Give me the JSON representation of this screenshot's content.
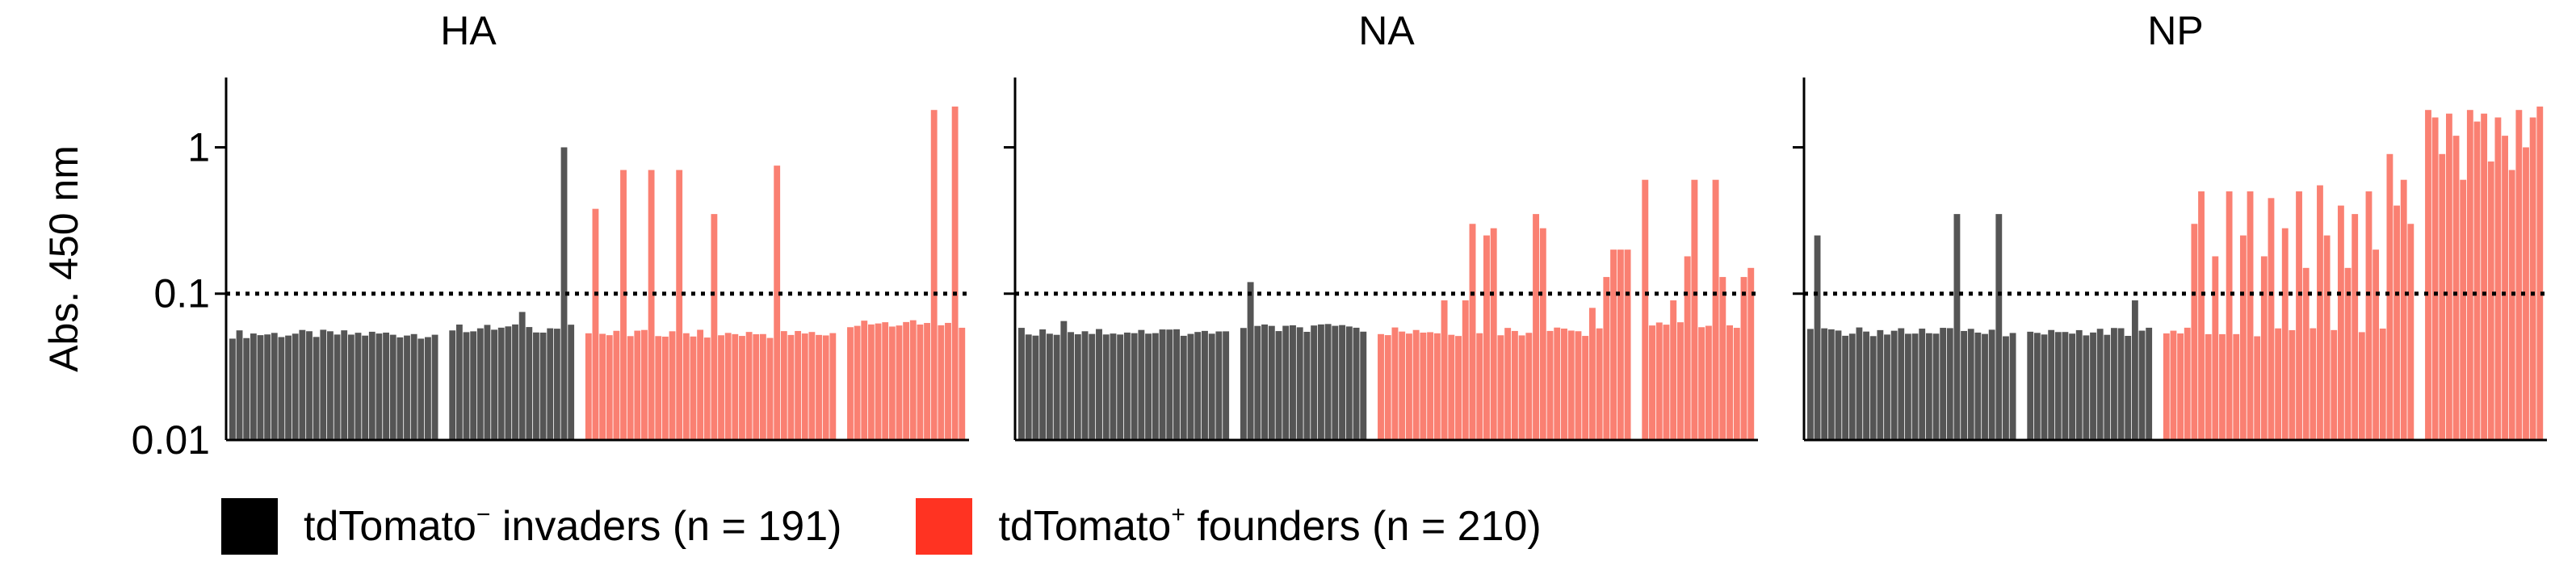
{
  "chart_data": [
    {
      "type": "bar",
      "title": "HA",
      "ylabel": "Abs. 450 nm",
      "yscale": "log",
      "ylim": [
        0.01,
        3
      ],
      "yticks": [
        0.01,
        0.1,
        1
      ],
      "ytick_labels": [
        "0.01",
        "0.1",
        "1"
      ],
      "threshold": 0.1,
      "groups": [
        {
          "series": "tdTomato- invaders",
          "color": "#555555",
          "n": 30,
          "baseline": 0.053,
          "spikes": []
        },
        {
          "series": "tdTomato- invaders",
          "color": "#555555",
          "n": 18,
          "baseline": 0.058,
          "spikes": [
            {
              "index": 10,
              "value": 0.075
            },
            {
              "index": 16,
              "value": 1.0
            }
          ]
        },
        {
          "series": "tdTomato+ founders",
          "color": "#fa8072",
          "n": 36,
          "baseline": 0.053,
          "spikes": [
            {
              "index": 1,
              "value": 0.38
            },
            {
              "index": 5,
              "value": 0.7
            },
            {
              "index": 9,
              "value": 0.7
            },
            {
              "index": 13,
              "value": 0.7
            },
            {
              "index": 18,
              "value": 0.35
            },
            {
              "index": 27,
              "value": 0.75
            }
          ]
        },
        {
          "series": "tdTomato+ founders",
          "color": "#fa8072",
          "n": 17,
          "baseline": 0.062,
          "spikes": [
            {
              "index": 12,
              "value": 1.8
            },
            {
              "index": 15,
              "value": 1.9
            }
          ]
        }
      ]
    },
    {
      "type": "bar",
      "title": "NA",
      "ylabel": "",
      "yscale": "log",
      "ylim": [
        0.01,
        3
      ],
      "threshold": 0.1,
      "groups": [
        {
          "series": "tdTomato- invaders",
          "color": "#555555",
          "n": 30,
          "baseline": 0.055,
          "spikes": [
            {
              "index": 6,
              "value": 0.065
            }
          ]
        },
        {
          "series": "tdTomato- invaders",
          "color": "#555555",
          "n": 18,
          "baseline": 0.058,
          "spikes": [
            {
              "index": 1,
              "value": 0.12
            }
          ]
        },
        {
          "series": "tdTomato+ founders",
          "color": "#fa8072",
          "n": 36,
          "baseline": 0.055,
          "spikes": [
            {
              "index": 9,
              "value": 0.09
            },
            {
              "index": 12,
              "value": 0.09
            },
            {
              "index": 13,
              "value": 0.3
            },
            {
              "index": 15,
              "value": 0.25
            },
            {
              "index": 16,
              "value": 0.28
            },
            {
              "index": 22,
              "value": 0.35
            },
            {
              "index": 23,
              "value": 0.28
            },
            {
              "index": 30,
              "value": 0.08
            },
            {
              "index": 32,
              "value": 0.13
            },
            {
              "index": 33,
              "value": 0.2
            },
            {
              "index": 34,
              "value": 0.2
            },
            {
              "index": 35,
              "value": 0.2
            }
          ]
        },
        {
          "series": "tdTomato+ founders",
          "color": "#fa8072",
          "n": 16,
          "baseline": 0.062,
          "spikes": [
            {
              "index": 0,
              "value": 0.6
            },
            {
              "index": 4,
              "value": 0.09
            },
            {
              "index": 6,
              "value": 0.18
            },
            {
              "index": 7,
              "value": 0.6
            },
            {
              "index": 10,
              "value": 0.6
            },
            {
              "index": 11,
              "value": 0.13
            },
            {
              "index": 14,
              "value": 0.13
            },
            {
              "index": 15,
              "value": 0.15
            }
          ]
        }
      ]
    },
    {
      "type": "bar",
      "title": "NP",
      "ylabel": "",
      "yscale": "log",
      "ylim": [
        0.01,
        3
      ],
      "threshold": 0.1,
      "groups": [
        {
          "series": "tdTomato- invaders",
          "color": "#555555",
          "n": 30,
          "baseline": 0.055,
          "spikes": [
            {
              "index": 1,
              "value": 0.25
            },
            {
              "index": 21,
              "value": 0.35
            },
            {
              "index": 27,
              "value": 0.35
            }
          ]
        },
        {
          "series": "tdTomato- invaders",
          "color": "#555555",
          "n": 18,
          "baseline": 0.055,
          "spikes": [
            {
              "index": 15,
              "value": 0.09
            }
          ]
        },
        {
          "series": "tdTomato+ founders",
          "color": "#fa8072",
          "n": 36,
          "baseline": 0.055,
          "spikes": [
            {
              "index": 4,
              "value": 0.3
            },
            {
              "index": 5,
              "value": 0.5
            },
            {
              "index": 7,
              "value": 0.18
            },
            {
              "index": 9,
              "value": 0.5
            },
            {
              "index": 11,
              "value": 0.25
            },
            {
              "index": 12,
              "value": 0.5
            },
            {
              "index": 14,
              "value": 0.18
            },
            {
              "index": 15,
              "value": 0.45
            },
            {
              "index": 17,
              "value": 0.28
            },
            {
              "index": 19,
              "value": 0.5
            },
            {
              "index": 20,
              "value": 0.15
            },
            {
              "index": 22,
              "value": 0.55
            },
            {
              "index": 23,
              "value": 0.25
            },
            {
              "index": 25,
              "value": 0.4
            },
            {
              "index": 26,
              "value": 0.15
            },
            {
              "index": 27,
              "value": 0.35
            },
            {
              "index": 29,
              "value": 0.5
            },
            {
              "index": 30,
              "value": 0.2
            },
            {
              "index": 32,
              "value": 0.9
            },
            {
              "index": 33,
              "value": 0.4
            },
            {
              "index": 34,
              "value": 0.6
            },
            {
              "index": 35,
              "value": 0.3
            }
          ]
        },
        {
          "series": "tdTomato+ founders",
          "color": "#fa8072",
          "n": 17,
          "baseline": 0.065,
          "spikes": [
            {
              "index": 0,
              "value": 1.8
            },
            {
              "index": 1,
              "value": 1.6
            },
            {
              "index": 2,
              "value": 0.9
            },
            {
              "index": 3,
              "value": 1.7
            },
            {
              "index": 4,
              "value": 1.2
            },
            {
              "index": 5,
              "value": 0.6
            },
            {
              "index": 6,
              "value": 1.8
            },
            {
              "index": 7,
              "value": 1.5
            },
            {
              "index": 8,
              "value": 1.7
            },
            {
              "index": 9,
              "value": 0.8
            },
            {
              "index": 10,
              "value": 1.6
            },
            {
              "index": 11,
              "value": 1.2
            },
            {
              "index": 12,
              "value": 0.7
            },
            {
              "index": 13,
              "value": 1.8
            },
            {
              "index": 14,
              "value": 1.0
            },
            {
              "index": 15,
              "value": 1.6
            },
            {
              "index": 16,
              "value": 1.9
            }
          ]
        }
      ]
    }
  ],
  "legend": {
    "placement": "bottom-left",
    "items": [
      {
        "key": "invaders",
        "label_main": "tdTomato",
        "label_sup": "−",
        "label_rest": " invaders (n = 191)",
        "color": "#000000"
      },
      {
        "key": "founders",
        "label_main": "tdTomato",
        "label_sup": "+",
        "label_rest": " founders (n = 210)",
        "color": "#ff3322"
      }
    ]
  }
}
